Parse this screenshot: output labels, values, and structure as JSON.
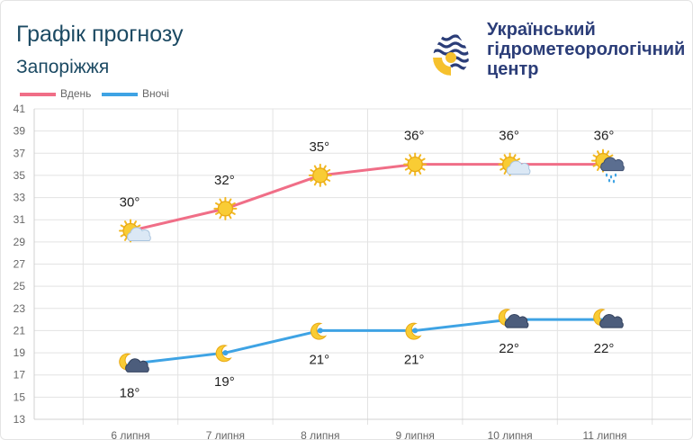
{
  "header": {
    "title": "Графік прогнозу",
    "city": "Запоріжжя",
    "org_lines": [
      "Український",
      "гідрометеорологічний",
      "центр"
    ],
    "logo_icon": "ukrhydromet-logo-icon"
  },
  "chart_data": {
    "type": "line",
    "categories": [
      "6 липня",
      "7 липня",
      "8 липня",
      "9 липня",
      "10 липня",
      "11 липня"
    ],
    "series": [
      {
        "name": "Вдень",
        "color": "#f06e87",
        "values": [
          30,
          32,
          35,
          36,
          36,
          36
        ],
        "labels": [
          "30°",
          "32°",
          "35°",
          "36°",
          "36°",
          "36°"
        ],
        "icons": [
          "sun-cloud-icon",
          "sun-icon",
          "sun-icon",
          "sun-icon",
          "sun-cloud-icon",
          "sun-rain-cloud-icon"
        ]
      },
      {
        "name": "Вночі",
        "color": "#3ea3e4",
        "values": [
          18,
          19,
          21,
          21,
          22,
          22
        ],
        "labels": [
          "18°",
          "19°",
          "21°",
          "21°",
          "22°",
          "22°"
        ],
        "icons": [
          "moon-cloud-icon",
          "moon-icon",
          "moon-icon",
          "moon-icon",
          "moon-cloud-icon",
          "moon-cloud-icon"
        ]
      }
    ],
    "y_ticks": [
      13,
      15,
      17,
      19,
      21,
      23,
      25,
      27,
      29,
      31,
      33,
      35,
      37,
      39,
      41
    ],
    "ylim": [
      13,
      41
    ],
    "grid": true,
    "legend_position": "top-left"
  }
}
